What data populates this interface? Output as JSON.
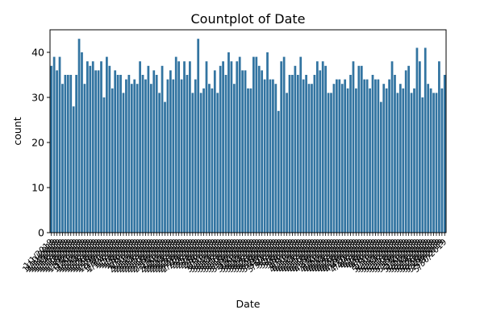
{
  "chart_data": {
    "type": "bar",
    "title": "Countplot of Date",
    "xlabel": "Date",
    "ylabel": "count",
    "ylim": [
      0,
      45
    ],
    "yticks": [
      0,
      10,
      20,
      30,
      40
    ],
    "bar_color": "#3274a1",
    "grid": false,
    "values": [
      37,
      39,
      36,
      39,
      33,
      35,
      35,
      35,
      28,
      35,
      43,
      40,
      33,
      38,
      37,
      38,
      36,
      36,
      38,
      30,
      39,
      37,
      32,
      36,
      35,
      35,
      31,
      34,
      35,
      33,
      34,
      33,
      38,
      35,
      34,
      37,
      33,
      36,
      35,
      31,
      37,
      29,
      34,
      36,
      34,
      39,
      38,
      34,
      38,
      35,
      38,
      31,
      34,
      43,
      31,
      32,
      38,
      33,
      32,
      36,
      31,
      37,
      38,
      35,
      40,
      38,
      33,
      38,
      39,
      36,
      36,
      32,
      32,
      39,
      39,
      37,
      36,
      34,
      40,
      34,
      34,
      33,
      27,
      38,
      39,
      31,
      35,
      35,
      37,
      35,
      39,
      34,
      35,
      33,
      33,
      35,
      38,
      36,
      38,
      37,
      31,
      31,
      33,
      34,
      34,
      33,
      34,
      32,
      35,
      38,
      32,
      37,
      37,
      34,
      34,
      32,
      35,
      34,
      34,
      29,
      33,
      32,
      34,
      38,
      35,
      31,
      33,
      32,
      36,
      37,
      31,
      32,
      41,
      38,
      30,
      41,
      33,
      32,
      31,
      31,
      38,
      32,
      35
    ],
    "categories": [
      "1/1/2019",
      "1/10/2019",
      "1/11/2019",
      "1/12/2019",
      "1/13/2019",
      "1/14/2019",
      "1/15/2019",
      "1/16/2019",
      "1/17/2019",
      "1/18/2019",
      "1/19/2019",
      "1/2/2019",
      "1/20/2019",
      "1/21/2019",
      "1/22/2019",
      "1/23/2019",
      "1/24/2019",
      "1/25/2019",
      "1/26/2019",
      "1/27/2019",
      "1/28/2019",
      "1/29/2019",
      "1/3/2019",
      "1/30/2019",
      "1/31/2019",
      "1/4/2019",
      "1/5/2019",
      "1/6/2019",
      "1/7/2019",
      "1/8/2019",
      "1/9/2019",
      "2/1/2019",
      "2/10/2019",
      "2/11/2019",
      "2/12/2019",
      "2/13/2019",
      "2/14/2019",
      "2/15/2019",
      "2/16/2019",
      "2/17/2019",
      "2/18/2019",
      "2/19/2019",
      "2/2/2019",
      "2/20/2019",
      "2/21/2019",
      "2/22/2019",
      "2/23/2019",
      "2/24/2019",
      "2/25/2019",
      "2/26/2019",
      "2/27/2019",
      "2/28/2019",
      "2/3/2019",
      "2/4/2019",
      "2/5/2019",
      "2/6/2019",
      "2/7/2019",
      "2/8/2019",
      "2/9/2019",
      "3/1/2019",
      "3/10/2019",
      "3/11/2019",
      "3/12/2019",
      "3/13/2019",
      "3/14/2019",
      "3/15/2019",
      "3/16/2019",
      "3/17/2019",
      "3/18/2019",
      "3/19/2019",
      "3/2/2019",
      "3/20/2019",
      "3/21/2019",
      "3/22/2019",
      "3/23/2019",
      "3/24/2019",
      "3/25/2019",
      "3/26/2019",
      "3/27/2019",
      "3/28/2019",
      "3/29/2019",
      "3/3/2019",
      "3/30/2019",
      "3/4/2019",
      "3/5/2019",
      "3/6/2019",
      "3/7/2019",
      "3/8/2019",
      "3/9/2019",
      "4/1/2019",
      "4/10/2019",
      "4/11/2019",
      "4/12/2019",
      "4/13/2019",
      "4/14/2019",
      "4/15/2019",
      "4/16/2019",
      "4/17/2019",
      "4/18/2019",
      "4/19/2019",
      "4/2/2019",
      "4/20/2019",
      "4/21/2019",
      "4/22/2019",
      "4/23/2019",
      "4/24/2019",
      "4/25/2019",
      "4/26/2019",
      "4/27/2019",
      "4/28/2019",
      "4/29/2019",
      "4/3/2019",
      "4/30/2019",
      "4/4/2019",
      "4/5/2019",
      "4/6/2019",
      "4/7/2019",
      "4/8/2019",
      "4/9/2019",
      "5/1/2019",
      "5/10/2019",
      "5/11/2019",
      "5/12/2019",
      "5/13/2019",
      "5/14/2019",
      "5/15/2019",
      "5/16/2019",
      "5/17/2019",
      "5/18/2019",
      "5/19/2019",
      "5/2/2019",
      "5/20/2019",
      "5/21/2019",
      "5/22/2019",
      "5/23/2019",
      "5/24/2019",
      "5/25/2019",
      "5/26/2019",
      "5/27/2019",
      "5/28/2019",
      "5/29/2019",
      "5/3/2019",
      "5/30/2019"
    ]
  }
}
